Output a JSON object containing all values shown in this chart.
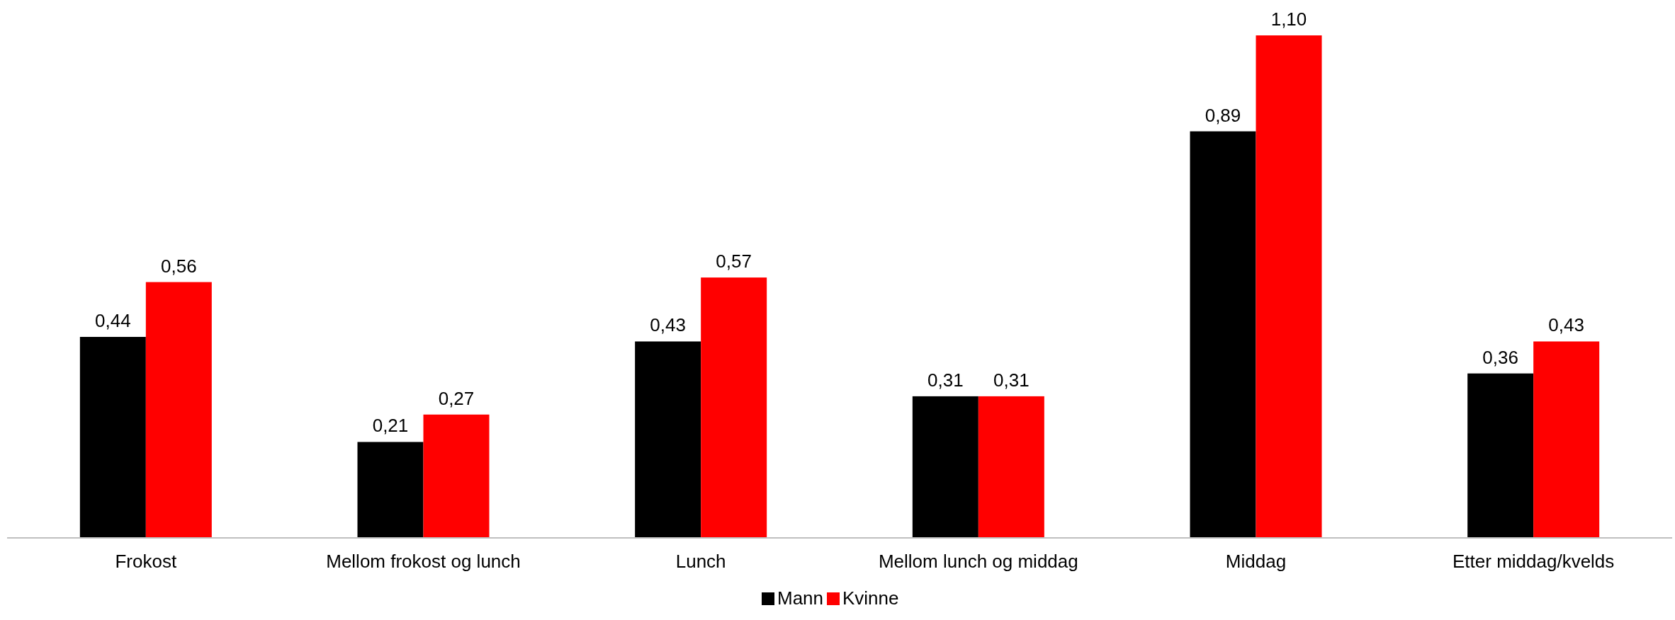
{
  "chart_data": {
    "type": "bar",
    "categories": [
      "Frokost",
      "Mellom frokost og lunch",
      "Lunch",
      "Mellom lunch og middag",
      "Middag",
      "Etter middag/kvelds"
    ],
    "series": [
      {
        "name": "Mann",
        "color": "#000000",
        "values": [
          0.44,
          0.21,
          0.43,
          0.31,
          0.89,
          0.36
        ],
        "value_labels": [
          "0,44",
          "0,21",
          "0,43",
          "0,31",
          "0,89",
          "0,36"
        ]
      },
      {
        "name": "Kvinne",
        "color": "#ff0000",
        "values": [
          0.56,
          0.27,
          0.57,
          0.31,
          1.1,
          0.43
        ],
        "value_labels": [
          "0,56",
          "0,27",
          "0,57",
          "0,31",
          "1,10",
          "0,43"
        ]
      }
    ],
    "legend": "bottom",
    "grid": false
  }
}
